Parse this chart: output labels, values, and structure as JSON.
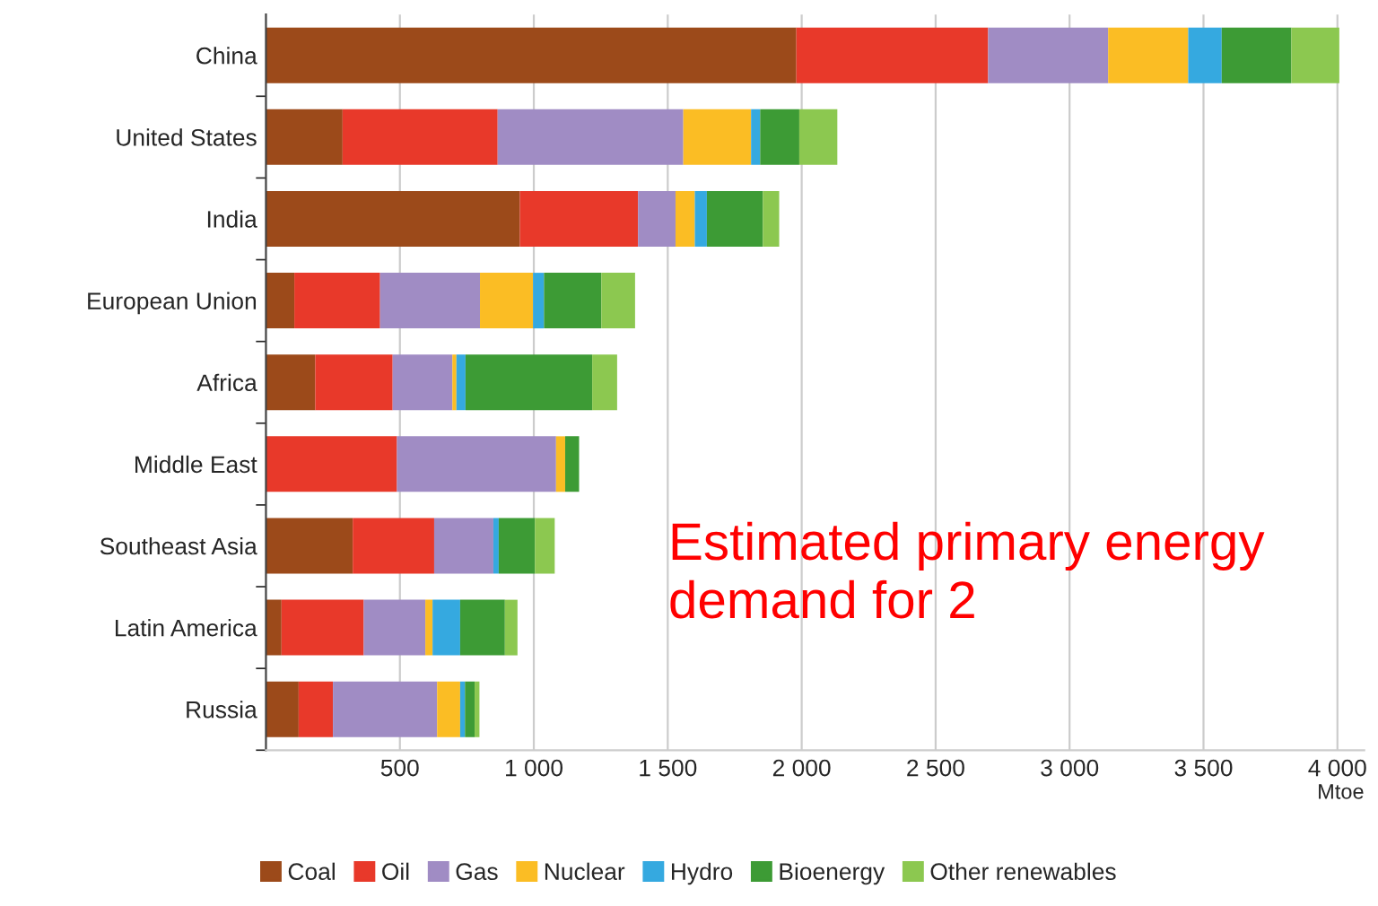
{
  "chart_data": {
    "type": "bar",
    "orientation": "horizontal",
    "stacked": true,
    "categories": [
      "China",
      "United States",
      "India",
      "European Union",
      "Africa",
      "Middle East",
      "Southeast Asia",
      "Latin America",
      "Russia"
    ],
    "series": [
      {
        "name": "Coal",
        "color": "#9c4a1a",
        "values": [
          1980,
          286,
          948,
          106,
          184,
          0,
          324,
          58,
          122
        ]
      },
      {
        "name": "Oil",
        "color": "#e8392a",
        "values": [
          716,
          579,
          441,
          320,
          289,
          489,
          304,
          307,
          128
        ]
      },
      {
        "name": "Gas",
        "color": "#a08cc4",
        "values": [
          448,
          693,
          140,
          373,
          223,
          594,
          221,
          230,
          389
        ]
      },
      {
        "name": "Nuclear",
        "color": "#fbbd24",
        "values": [
          299,
          253,
          72,
          198,
          15,
          34,
          0,
          27,
          86
        ]
      },
      {
        "name": "Hydro",
        "color": "#35a9e0",
        "values": [
          125,
          34,
          45,
          41,
          34,
          0,
          20,
          103,
          18
        ]
      },
      {
        "name": "Bioenergy",
        "color": "#3d9b35",
        "values": [
          260,
          146,
          209,
          214,
          473,
          52,
          135,
          167,
          36
        ]
      },
      {
        "name": "Other renewables",
        "color": "#8cc850",
        "values": [
          179,
          142,
          61,
          126,
          93,
          0,
          74,
          47,
          18
        ]
      }
    ],
    "xlim": [
      0,
      4100
    ],
    "xticks": [
      500,
      {
        "value": 1000,
        "label": "1 000"
      },
      {
        "value": 1500,
        "label": "1 500"
      },
      {
        "value": 2000,
        "label": "2 000"
      },
      {
        "value": 2500,
        "label": "2 500"
      },
      {
        "value": 3000,
        "label": "3 000"
      },
      {
        "value": 3500,
        "label": "3 500"
      },
      {
        "value": 4000,
        "label": "4 000"
      }
    ],
    "xlabel": "Mtoe",
    "grid": "x",
    "legend": "bottom",
    "annotations": [
      "Estimated primary energy demand for 2"
    ]
  }
}
